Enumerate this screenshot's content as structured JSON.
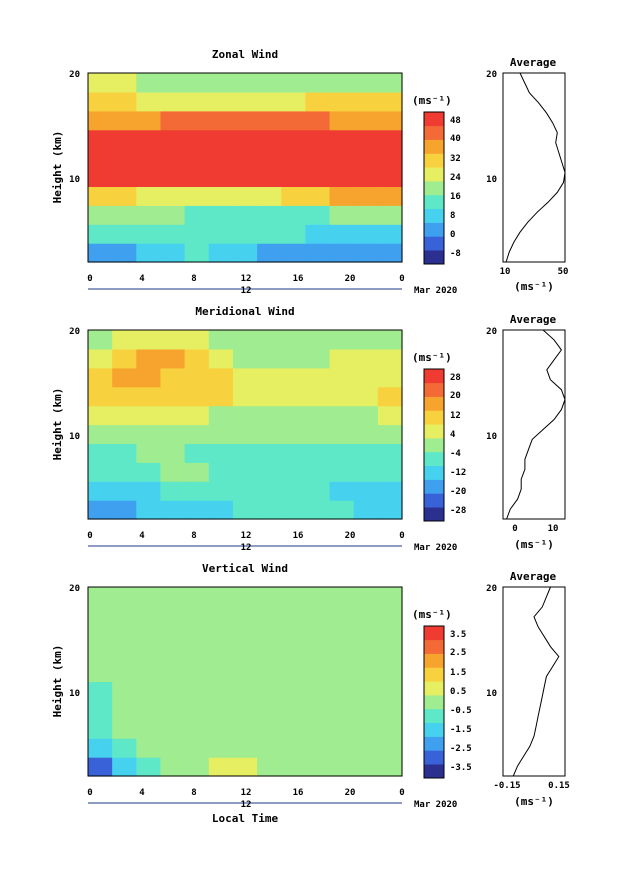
{
  "colors": {
    "palette": [
      "#2b2f8f",
      "#3a62d8",
      "#3fa0f0",
      "#46d2ee",
      "#5ee8c8",
      "#a0ec90",
      "#e6ee62",
      "#f7d23e",
      "#f7a42e",
      "#f46a36",
      "#ef3b32"
    ],
    "missing": "#ffffff",
    "line": "#000000"
  },
  "footer": {
    "xlabel": "Local Time"
  },
  "panels": [
    {
      "title": "Zonal Wind",
      "ylabel": "Height (km)",
      "xticks": [
        "0",
        "4",
        "8",
        "12",
        "16",
        "20",
        "0"
      ],
      "yticks": [
        "20",
        "10"
      ],
      "date_mark": "12",
      "date_label": "Mar 2020",
      "colorbar_unit": "(ms⁻¹)",
      "colorbar_ticks": [
        "48",
        "40",
        "32",
        "24",
        "16",
        "8",
        "0",
        "-8"
      ],
      "avg": {
        "title": "Average",
        "yticks": [
          "20",
          "10"
        ],
        "xticks": [
          "10",
          "50"
        ],
        "xlabel": "(ms⁻¹)"
      }
    },
    {
      "title": "Meridional Wind",
      "ylabel": "Height (km)",
      "xticks": [
        "0",
        "4",
        "8",
        "12",
        "16",
        "20",
        "0"
      ],
      "yticks": [
        "20",
        "10"
      ],
      "date_mark": "12",
      "date_label": "Mar 2020",
      "colorbar_unit": "(ms⁻¹)",
      "colorbar_ticks": [
        "28",
        "20",
        "12",
        "4",
        "-4",
        "-12",
        "-20",
        "-28"
      ],
      "avg": {
        "title": "Average",
        "yticks": [
          "20",
          "10"
        ],
        "xticks": [
          "0",
          "10"
        ],
        "xlabel": "(ms⁻¹)"
      }
    },
    {
      "title": "Vertical Wind",
      "ylabel": "Height (km)",
      "xticks": [
        "0",
        "4",
        "8",
        "12",
        "16",
        "20",
        "0"
      ],
      "yticks": [
        "20",
        "10"
      ],
      "date_mark": "12",
      "date_label": "Mar 2020",
      "colorbar_unit": "(ms⁻¹)",
      "colorbar_ticks": [
        "3.5",
        "2.5",
        "1.5",
        "0.5",
        "-0.5",
        "-1.5",
        "-2.5",
        "-3.5"
      ],
      "avg": {
        "title": "Average",
        "yticks": [
          "20",
          "10"
        ],
        "xticks": [
          "-0.15",
          "0.15"
        ],
        "xlabel": "(ms⁻¹)"
      }
    }
  ],
  "chart_data": [
    {
      "type": "heatmap",
      "title": "Zonal Wind",
      "xlabel": "Local Time",
      "ylabel": "Height (km)",
      "x": [
        0,
        2,
        4,
        6,
        8,
        10,
        12,
        14,
        16,
        18,
        20,
        22,
        24
      ],
      "y": [
        2,
        4,
        6,
        8,
        10,
        12,
        14,
        16,
        18,
        20
      ],
      "z": [
        [
          4,
          8,
          10,
          12,
          14,
          12,
          10,
          8,
          6,
          5,
          4,
          3,
          3
        ],
        [
          14,
          14,
          14,
          16,
          16,
          16,
          16,
          16,
          14,
          12,
          12,
          12,
          12
        ],
        [
          24,
          24,
          22,
          20,
          18,
          18,
          18,
          18,
          18,
          18,
          20,
          20,
          20
        ],
        [
          34,
          32,
          30,
          28,
          26,
          26,
          28,
          30,
          32,
          34,
          36,
          38,
          38
        ],
        [
          52,
          52,
          52,
          52,
          52,
          52,
          52,
          52,
          52,
          52,
          52,
          52,
          52
        ],
        [
          52,
          52,
          52,
          52,
          52,
          52,
          52,
          52,
          52,
          52,
          52,
          52,
          52
        ],
        [
          50,
          50,
          50,
          50,
          50,
          50,
          50,
          50,
          50,
          50,
          50,
          50,
          50
        ],
        [
          36,
          36,
          40,
          44,
          44,
          44,
          44,
          44,
          44,
          42,
          40,
          40,
          40
        ],
        [
          32,
          32,
          30,
          28,
          28,
          28,
          28,
          30,
          30,
          32,
          34,
          34,
          34
        ],
        [
          26,
          26,
          24,
          22,
          20,
          20,
          20,
          22,
          22,
          22,
          24,
          24,
          24
        ]
      ],
      "zlim": [
        -8,
        52
      ],
      "colorbar_label": "(ms⁻¹)",
      "ylim": [
        1,
        20
      ],
      "xlim": [
        0,
        24
      ],
      "date": "12 Mar 2020",
      "average_profile": {
        "title": "Average",
        "xlabel": "(ms⁻¹)",
        "xlim": [
          10,
          50
        ],
        "height": [
          1,
          2,
          3,
          4,
          5,
          6,
          7,
          8,
          9,
          10,
          11,
          12,
          13,
          14,
          15,
          16,
          17,
          18,
          19,
          20
        ],
        "value": [
          12,
          14,
          17,
          21,
          26,
          32,
          39,
          45,
          49,
          50,
          48,
          46,
          44,
          45,
          42,
          38,
          33,
          27,
          24,
          21
        ]
      }
    },
    {
      "type": "heatmap",
      "title": "Meridional Wind",
      "xlabel": "Local Time",
      "ylabel": "Height (km)",
      "x": [
        0,
        2,
        4,
        6,
        8,
        10,
        12,
        14,
        16,
        18,
        20,
        22,
        24
      ],
      "y": [
        2,
        4,
        6,
        8,
        10,
        12,
        14,
        16,
        18,
        20
      ],
      "z": [
        [
          -14,
          -14,
          -12,
          -10,
          -8,
          -8,
          -6,
          -6,
          -6,
          -6,
          -6,
          -8,
          -10
        ],
        [
          -12,
          -10,
          -8,
          -6,
          -4,
          -4,
          -4,
          -4,
          -6,
          -6,
          -8,
          -10,
          -10
        ],
        [
          -6,
          -4,
          -4,
          -2,
          -2,
          -4,
          -4,
          -4,
          -4,
          -4,
          -6,
          -6,
          -6
        ],
        [
          -4,
          -4,
          -2,
          -2,
          -4,
          -6,
          -6,
          -6,
          -4,
          -4,
          -4,
          -4,
          -4
        ],
        [
          0,
          0,
          2,
          2,
          2,
          0,
          -2,
          -2,
          -2,
          -2,
          -2,
          -2,
          -2
        ],
        [
          4,
          4,
          6,
          6,
          4,
          2,
          2,
          2,
          2,
          2,
          2,
          2,
          4
        ],
        [
          8,
          10,
          12,
          12,
          10,
          8,
          6,
          4,
          4,
          6,
          6,
          6,
          8
        ],
        [
          12,
          14,
          14,
          12,
          10,
          8,
          6,
          4,
          4,
          4,
          6,
          6,
          6
        ],
        [
          6,
          10,
          14,
          14,
          10,
          6,
          2,
          2,
          0,
          2,
          4,
          4,
          4
        ],
        [
          2,
          4,
          6,
          6,
          4,
          0,
          -2,
          -2,
          -2,
          -2,
          0,
          0,
          2
        ]
      ],
      "zlim": [
        -28,
        28
      ],
      "colorbar_label": "(ms⁻¹)",
      "ylim": [
        1,
        20
      ],
      "xlim": [
        0,
        24
      ],
      "date": "12 Mar 2020",
      "average_profile": {
        "title": "Average",
        "xlabel": "(ms⁻¹)",
        "xlim": [
          -4,
          13
        ],
        "height": [
          1,
          2,
          3,
          4,
          5,
          6,
          7,
          8,
          9,
          10,
          11,
          12,
          13,
          14,
          15,
          16,
          17,
          18,
          19,
          20
        ],
        "value": [
          -3,
          -2,
          0,
          1,
          1,
          2,
          2,
          3,
          4,
          7,
          10,
          12,
          13,
          12,
          9,
          8,
          10,
          12,
          10,
          7
        ]
      }
    },
    {
      "type": "heatmap",
      "title": "Vertical Wind",
      "xlabel": "Local Time",
      "ylabel": "Height (km)",
      "x": [
        0,
        2,
        4,
        6,
        8,
        10,
        12,
        14,
        16,
        18,
        20,
        22,
        24
      ],
      "y": [
        2,
        4,
        6,
        8,
        10,
        12,
        14,
        16,
        18,
        20
      ],
      "z": [
        [
          -2.5,
          -1.5,
          -0.5,
          0,
          0.2,
          0.5,
          0.5,
          0.3,
          0.2,
          0.1,
          0,
          0,
          0
        ],
        [
          -1.5,
          -0.5,
          -0.3,
          0,
          0.2,
          0.3,
          0.3,
          0.2,
          0.2,
          0.1,
          0.1,
          0,
          0
        ],
        [
          -0.5,
          -0.3,
          -0.2,
          0,
          0.2,
          0.3,
          0.3,
          0.2,
          0.2,
          0.2,
          0.1,
          0.1,
          0
        ],
        [
          -0.4,
          -0.3,
          -0.2,
          -0.1,
          0,
          0.2,
          0.2,
          0.1,
          0.1,
          0.1,
          0,
          0,
          0
        ],
        [
          -0.4,
          -0.3,
          -0.2,
          -0.2,
          -0.1,
          0,
          0,
          0,
          -0.1,
          -0.1,
          -0.1,
          -0.2,
          -0.2
        ],
        [
          -0.3,
          -0.3,
          -0.2,
          -0.2,
          -0.2,
          -0.1,
          -0.1,
          -0.1,
          -0.1,
          -0.1,
          -0.2,
          -0.2,
          -0.2
        ],
        [
          -0.3,
          -0.2,
          -0.2,
          -0.2,
          -0.1,
          0,
          0,
          0,
          0,
          -0.1,
          -0.1,
          -0.2,
          -0.2
        ],
        [
          -0.2,
          -0.2,
          -0.2,
          -0.1,
          -0.1,
          0,
          0,
          0,
          0,
          0,
          -0.1,
          -0.1,
          -0.2
        ],
        [
          -0.2,
          -0.2,
          -0.1,
          -0.1,
          0,
          0,
          0,
          0.1,
          0,
          0,
          -0.1,
          -0.1,
          -0.1
        ],
        [
          -0.3,
          -0.2,
          -0.2,
          -0.1,
          0,
          0,
          0,
          0,
          0,
          -0.1,
          -0.1,
          -0.2,
          -0.2
        ]
      ],
      "zlim": [
        -3.5,
        3.5
      ],
      "colorbar_label": "(ms⁻¹)",
      "ylim": [
        1,
        20
      ],
      "xlim": [
        0,
        24
      ],
      "date": "12 Mar 2020",
      "average_profile": {
        "title": "Average",
        "xlabel": "(ms⁻¹)",
        "xlim": [
          -0.15,
          0.15
        ],
        "height": [
          1,
          2,
          3,
          4,
          5,
          6,
          7,
          8,
          9,
          10,
          11,
          12,
          13,
          14,
          15,
          16,
          17,
          18,
          19,
          20
        ],
        "value": [
          -0.1,
          -0.08,
          -0.05,
          -0.02,
          0.0,
          0.01,
          0.02,
          0.03,
          0.04,
          0.05,
          0.06,
          0.09,
          0.12,
          0.08,
          0.05,
          0.02,
          0.0,
          0.04,
          0.06,
          0.08
        ]
      }
    }
  ]
}
